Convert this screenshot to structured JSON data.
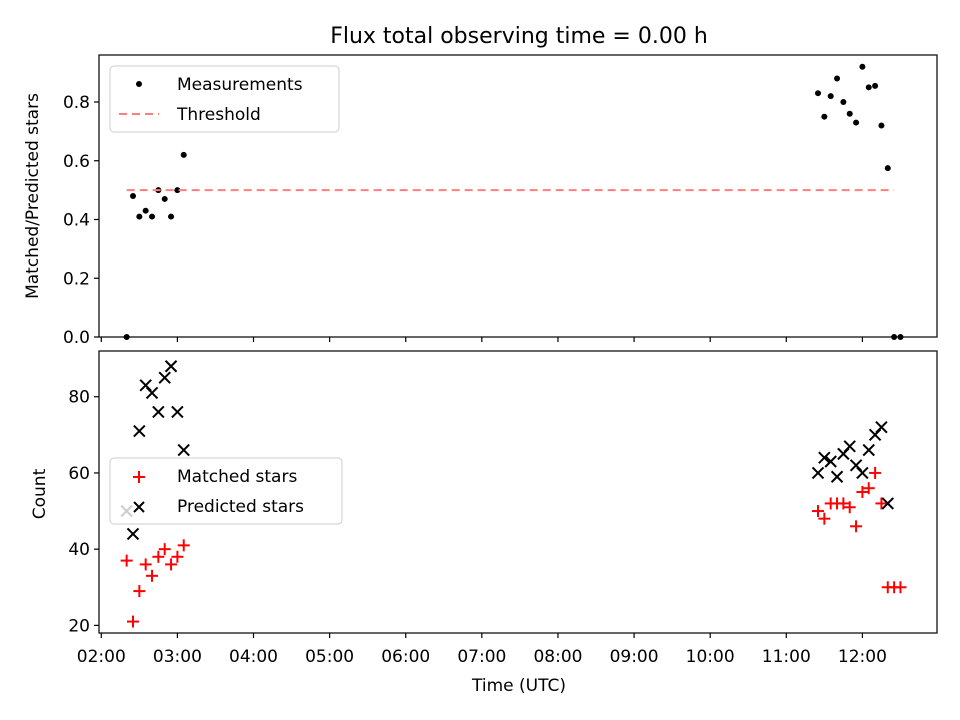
{
  "title": "Flux total observing time = 0.00 h",
  "xaxis": {
    "label": "Time (UTC)",
    "ticks": [
      "02:00",
      "03:00",
      "04:00",
      "05:00",
      "06:00",
      "07:00",
      "08:00",
      "09:00",
      "10:00",
      "11:00",
      "12:00"
    ],
    "range_hours": [
      1.97,
      12.98
    ]
  },
  "chart_data": [
    {
      "type": "scatter",
      "ylabel": "Matched/Predicted stars",
      "ylim": [
        0,
        0.96
      ],
      "yticks": [
        "0.0",
        "0.2",
        "0.4",
        "0.6",
        "0.8"
      ],
      "grid": false,
      "legend": "top-left",
      "series": [
        {
          "name": "Measurements",
          "color": "#000000",
          "marker": "dot",
          "points": [
            [
              "02:20",
              0.0
            ],
            [
              "02:25",
              0.48
            ],
            [
              "02:30",
              0.41
            ],
            [
              "02:35",
              0.43
            ],
            [
              "02:40",
              0.41
            ],
            [
              "02:45",
              0.5
            ],
            [
              "02:50",
              0.47
            ],
            [
              "02:55",
              0.41
            ],
            [
              "03:00",
              0.5
            ],
            [
              "03:05",
              0.62
            ],
            [
              "11:25",
              0.83
            ],
            [
              "11:30",
              0.75
            ],
            [
              "11:35",
              0.82
            ],
            [
              "11:40",
              0.88
            ],
            [
              "11:45",
              0.8
            ],
            [
              "11:50",
              0.76
            ],
            [
              "11:55",
              0.73
            ],
            [
              "12:00",
              0.92
            ],
            [
              "12:05",
              0.85
            ],
            [
              "12:10",
              0.855
            ],
            [
              "12:15",
              0.72
            ],
            [
              "12:20",
              0.575
            ],
            [
              "12:25",
              0.0
            ],
            [
              "12:30",
              0.0
            ]
          ]
        },
        {
          "name": "Threshold",
          "color": "#ff7f7f",
          "style": "dashed",
          "points": [
            [
              "02:20",
              0.5
            ],
            [
              "12:25",
              0.5
            ]
          ]
        }
      ]
    },
    {
      "type": "scatter",
      "ylabel": "Count",
      "ylim": [
        18,
        92
      ],
      "yticks": [
        "20",
        "40",
        "60",
        "80"
      ],
      "grid": false,
      "legend": "center-left",
      "series": [
        {
          "name": "Matched stars",
          "color": "#ff0000",
          "marker": "plus",
          "points": [
            [
              "02:20",
              37
            ],
            [
              "02:25",
              21
            ],
            [
              "02:30",
              29
            ],
            [
              "02:35",
              36
            ],
            [
              "02:40",
              33
            ],
            [
              "02:45",
              38
            ],
            [
              "02:50",
              40
            ],
            [
              "02:55",
              36
            ],
            [
              "03:00",
              38
            ],
            [
              "03:05",
              41
            ],
            [
              "11:25",
              50
            ],
            [
              "11:30",
              48
            ],
            [
              "11:35",
              52
            ],
            [
              "11:40",
              52
            ],
            [
              "11:45",
              52
            ],
            [
              "11:50",
              51
            ],
            [
              "11:55",
              46
            ],
            [
              "12:00",
              55
            ],
            [
              "12:05",
              56
            ],
            [
              "12:10",
              60
            ],
            [
              "12:15",
              52
            ],
            [
              "12:20",
              30
            ],
            [
              "12:25",
              30
            ],
            [
              "12:30",
              30
            ]
          ]
        },
        {
          "name": "Predicted stars",
          "color": "#000000",
          "marker": "x",
          "points": [
            [
              "02:20",
              50
            ],
            [
              "02:25",
              44
            ],
            [
              "02:30",
              71
            ],
            [
              "02:35",
              83
            ],
            [
              "02:40",
              81
            ],
            [
              "02:45",
              76
            ],
            [
              "02:50",
              85
            ],
            [
              "02:55",
              88
            ],
            [
              "03:00",
              76
            ],
            [
              "03:05",
              66
            ],
            [
              "11:25",
              60
            ],
            [
              "11:30",
              64
            ],
            [
              "11:35",
              63
            ],
            [
              "11:40",
              59
            ],
            [
              "11:45",
              65
            ],
            [
              "11:50",
              67
            ],
            [
              "11:55",
              62
            ],
            [
              "12:00",
              60
            ],
            [
              "12:05",
              66
            ],
            [
              "12:10",
              70
            ],
            [
              "12:15",
              72
            ],
            [
              "12:20",
              52
            ]
          ]
        }
      ]
    }
  ]
}
